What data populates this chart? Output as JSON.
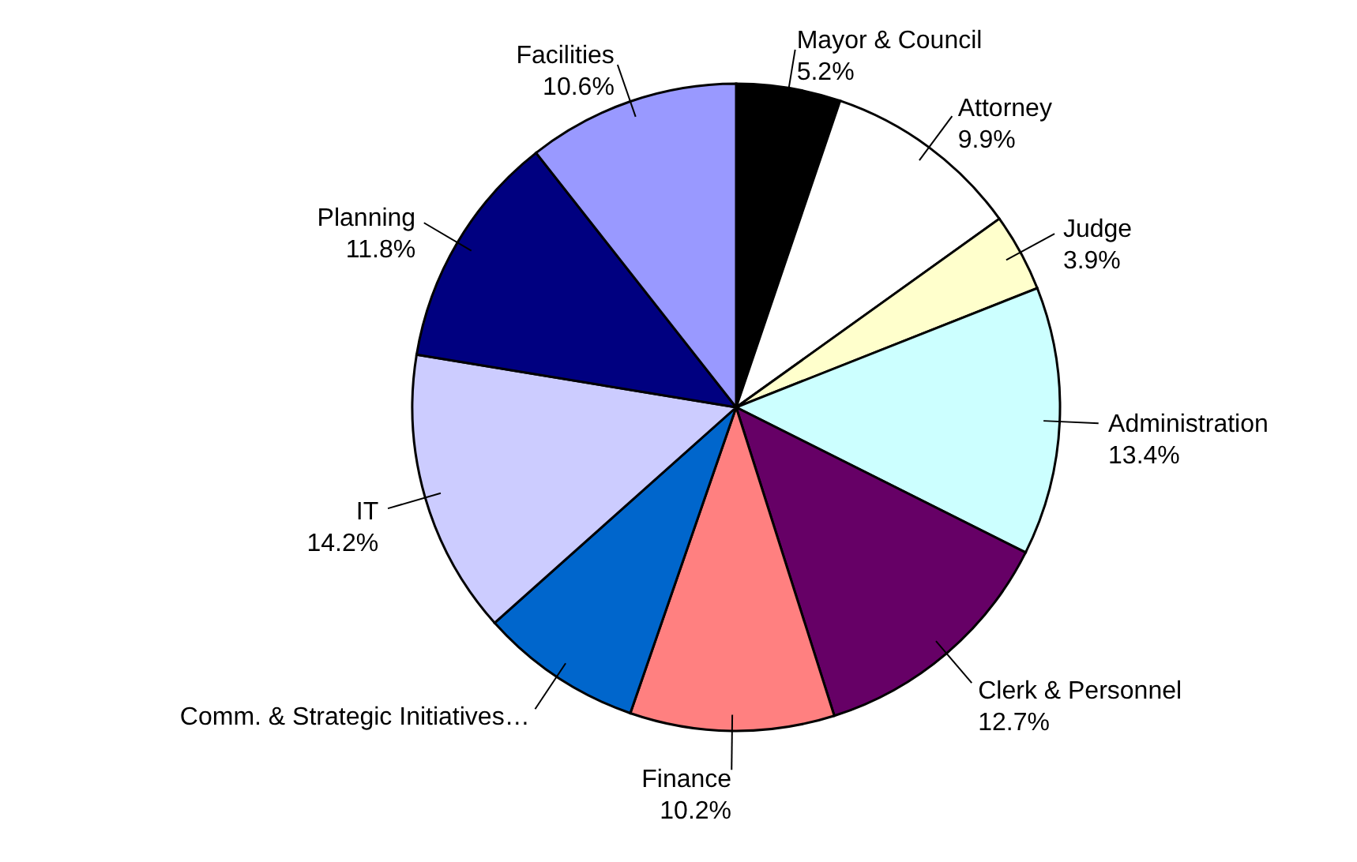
{
  "chart_data": {
    "type": "pie",
    "categories": [
      "Mayor & Council",
      "Attorney",
      "Judge",
      "Administration",
      "Clerk & Personnel",
      "Finance",
      "Comm. & Strategic Initiatives…",
      "IT",
      "Planning",
      "Facilities"
    ],
    "values": [
      5.2,
      9.9,
      3.9,
      13.4,
      12.7,
      10.2,
      8.1,
      14.2,
      11.8,
      10.6
    ],
    "value_labels": [
      "5.2%",
      "9.9%",
      "3.9%",
      "13.4%",
      "12.7%",
      "10.2%",
      null,
      "14.2%",
      "11.8%",
      "10.6%"
    ],
    "colors": [
      "#000000",
      "#ffffff",
      "#ffffcc",
      "#ccffff",
      "#660066",
      "#ff8080",
      "#0066cc",
      "#ccccff",
      "#000080",
      "#9999ff"
    ]
  }
}
